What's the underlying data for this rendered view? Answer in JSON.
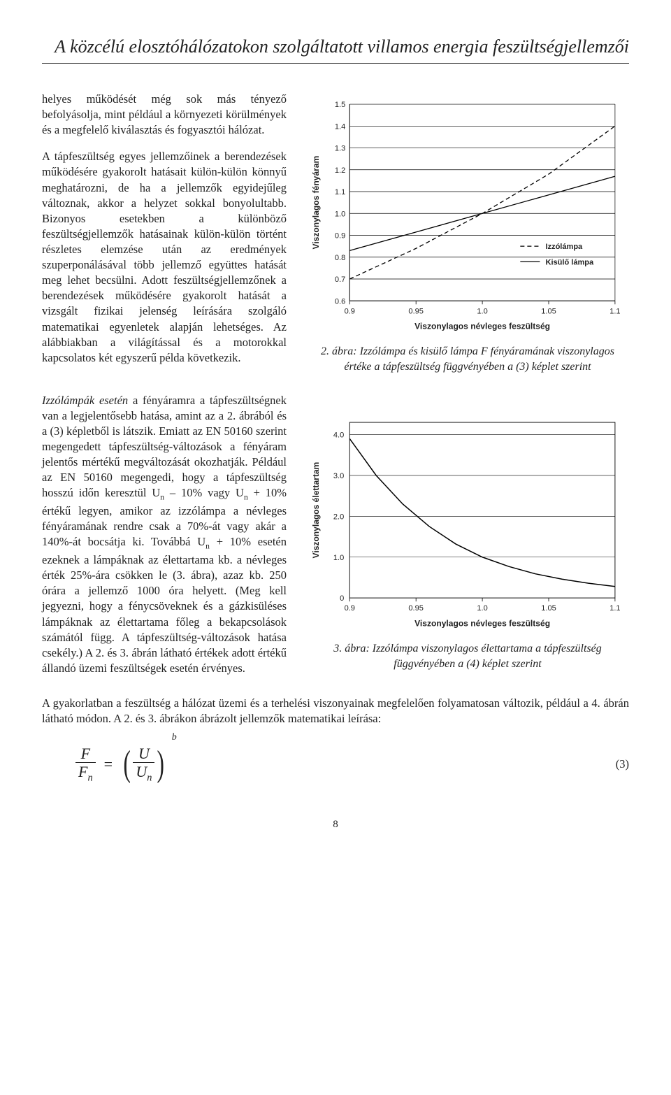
{
  "page": {
    "title": "A közcélú elosztóhálózatokon szolgáltatott villamos energia feszültségjellemzői",
    "page_number": "8"
  },
  "text": {
    "p1": "helyes működését még sok más tényező befolyásolja, mint például a környezeti körülmények és a megfelelő kiválasztás és fogyasztói hálózat.",
    "p2": "A tápfeszültség egyes jellemzőinek a berendezések működésére gyakorolt hatásait külön-külön könnyű meghatározni, de ha a jellemzők egyidejűleg változnak, akkor a helyzet sokkal bonyolultabb. Bizonyos esetekben a különböző feszültségjellemzők hatásainak külön-külön történt részletes elemzése után az eredmények szuperponálásával több jellemző együttes hatását meg lehet becsülni. Adott feszültségjellemzőnek a berendezések működésére gyakorolt hatását a vizsgált fizikai jelenség leírására szolgáló matematikai egyenletek alapján lehetséges. Az alábbiakban a világítással és a motorokkal kapcsolatos két egyszerű példa következik.",
    "p3_lead": "Izzólámpák esetén",
    "p3_rest": " a fényáramra a tápfeszültségnek van a legjelentősebb hatása, amint az a 2. ábrából és a (3) képletből is látszik. Emiatt az EN 50160 szerint megengedett tápfeszültség-változások a fényáram jelentős mértékű megváltozását okozhatják. Például az EN 50160 megengedi, hogy a tápfeszültség hosszú időn keresztül U",
    "p3_un1": "n",
    "p3_mid1": " – 10% vagy U",
    "p3_un2": "n",
    "p3_mid2": " + 10% értékű legyen, amikor az izzólámpa a névleges fényáramának rendre csak a 70%-át vagy akár a 140%-át bocsátja ki. Továbbá U",
    "p3_un3": "n",
    "p3_rest2": " + 10% esetén ezeknek a lámpáknak az élettartama kb. a névleges érték 25%-ára csökken le (3. ábra), azaz kb. 250 órára a jellemző 1000 óra helyett. (Meg kell jegyezni, hogy a fénycsöveknek és a gázkisüléses lámpáknak az élettartama főleg a bekapcsolások számától függ. A tápfeszültség-változások hatása csekély.) A 2. és 3. ábrán látható értékek adott értékű állandó üzemi feszültségek esetén érvényes.",
    "bottom": "A gyakorlatban a feszültség a hálózat üzemi és a terhelési viszonyainak megfelelően folyamatosan változik, például a 4. ábrán látható módon. A 2. és 3. ábrákon ábrázolt jellemzők matematikai leírása:"
  },
  "equation": {
    "F": "F",
    "Fn": "F",
    "Fn_sub": "n",
    "eq": "=",
    "U": "U",
    "Un": "U",
    "Un_sub": "n",
    "b": "b",
    "number": "(3)"
  },
  "fig2": {
    "caption": "2. ábra: Izzólámpa és kisülő lámpa F fényáramának viszonylagos értéke a tápfeszültség függvényében a (3) képlet szerint",
    "ylabel": "Viszonylagos fényáram",
    "xlabel": "Viszonylagos névleges feszültség",
    "xticks": [
      "0.9",
      "0.95",
      "1.0",
      "1.05",
      "1.1"
    ],
    "yticks": [
      "0.6",
      "0.7",
      "0.8",
      "0.9",
      "1.0",
      "1.1",
      "1.2",
      "1.3",
      "1.4",
      "1.5"
    ],
    "legend": {
      "dashed": "Izzólámpa",
      "solid": "Kisülő lámpa"
    },
    "colors": {
      "axis": "#000000",
      "grid": "#000000",
      "solid": "#000000",
      "dashed": "#000000",
      "bg": "#ffffff"
    },
    "line_width": 1.3,
    "dash_pattern": "6,4",
    "solid_series": [
      [
        0.9,
        0.83
      ],
      [
        0.95,
        0.915
      ],
      [
        1.0,
        1.0
      ],
      [
        1.05,
        1.085
      ],
      [
        1.1,
        1.17
      ]
    ],
    "dashed_series": [
      [
        0.9,
        0.7
      ],
      [
        0.95,
        0.84
      ],
      [
        1.0,
        1.0
      ],
      [
        1.05,
        1.18
      ],
      [
        1.1,
        1.4
      ]
    ],
    "xlim": [
      0.9,
      1.1
    ],
    "ylim": [
      0.6,
      1.5
    ]
  },
  "fig3": {
    "caption": "3. ábra: Izzólámpa viszonylagos élettartama a tápfeszültség függvényében a (4) képlet szerint",
    "ylabel": "Viszonylagos élettartam",
    "xlabel": "Viszonylagos névleges feszültség",
    "xticks": [
      "0.9",
      "0.95",
      "1.0",
      "1.05",
      "1.1"
    ],
    "yticks": [
      "0",
      "1.0",
      "2.0",
      "3.0",
      "4.0"
    ],
    "colors": {
      "axis": "#000000",
      "line": "#000000",
      "bg": "#ffffff"
    },
    "line_width": 1.5,
    "series": [
      [
        0.9,
        3.9
      ],
      [
        0.92,
        3.0
      ],
      [
        0.94,
        2.3
      ],
      [
        0.96,
        1.75
      ],
      [
        0.98,
        1.32
      ],
      [
        1.0,
        1.0
      ],
      [
        1.02,
        0.77
      ],
      [
        1.04,
        0.59
      ],
      [
        1.06,
        0.46
      ],
      [
        1.08,
        0.36
      ],
      [
        1.1,
        0.28
      ]
    ],
    "xlim": [
      0.9,
      1.1
    ],
    "ylim": [
      0,
      4.3
    ]
  }
}
